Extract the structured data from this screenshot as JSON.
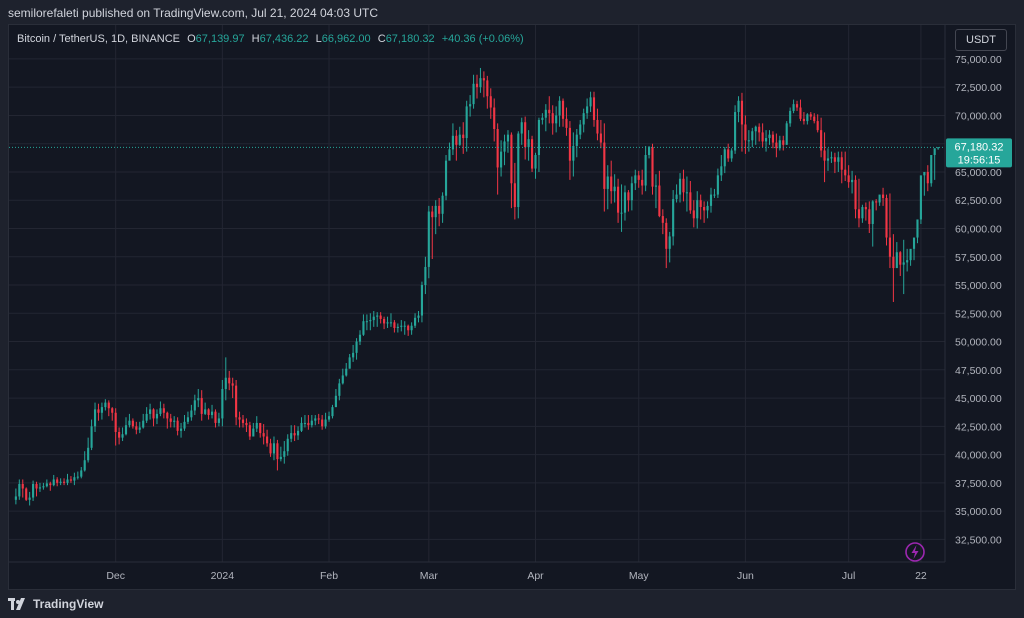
{
  "publisher_line": "semilorefaleti published on TradingView.com, Jul 21, 2024 04:03 UTC",
  "legend": {
    "symbol": "Bitcoin / TetherUS, 1D, BINANCE",
    "open_label": "O",
    "open": "67,139.97",
    "high_label": "H",
    "high": "67,436.22",
    "low_label": "L",
    "low": "66,962.00",
    "close_label": "C",
    "close": "67,180.32",
    "change": "+40.36 (+0.06%)"
  },
  "currency_button": "USDT",
  "last_price_label": "67,180.32",
  "countdown_label": "19:56:15",
  "footer_brand": "TradingView",
  "colors": {
    "up": "#26a69a",
    "down": "#f23645",
    "background": "#131722",
    "grid": "#232632",
    "text": "#b2b5be",
    "marker": "#9c27b0"
  },
  "icons": {
    "brand": "tradingview-logo-icon",
    "event": "lightning-icon"
  },
  "chart_data": {
    "type": "candlestick",
    "title": "Bitcoin / TetherUS, 1D, BINANCE",
    "y_tick_labels": [
      "75,000.00",
      "72,500.00",
      "70,000.00",
      "67,500.00",
      "65,000.00",
      "62,500.00",
      "60,000.00",
      "57,500.00",
      "55,000.00",
      "52,500.00",
      "50,000.00",
      "47,500.00",
      "45,000.00",
      "42,500.00",
      "40,000.00",
      "37,500.00",
      "35,000.00",
      "32,500.00"
    ],
    "y_ticks": [
      75000,
      72500,
      70000,
      67500,
      65000,
      62500,
      60000,
      57500,
      55000,
      52500,
      50000,
      47500,
      45000,
      42500,
      40000,
      37500,
      35000,
      32500
    ],
    "x_tick_labels": [
      "Dec",
      "2024",
      "Feb",
      "Mar",
      "Apr",
      "May",
      "Jun",
      "Jul",
      "22"
    ],
    "x_tick_index": [
      29,
      60,
      91,
      120,
      151,
      181,
      212,
      242,
      263
    ],
    "ylim": [
      30500,
      78000
    ],
    "x_range": [
      -2,
      270
    ],
    "closes": [
      36300,
      37400,
      37000,
      36000,
      36200,
      37400,
      37000,
      37100,
      37200,
      37450,
      37300,
      37800,
      37500,
      37600,
      37500,
      37800,
      37700,
      38000,
      38050,
      38600,
      39500,
      40600,
      42500,
      44000,
      43700,
      44200,
      44600,
      44100,
      43700,
      42000,
      41500,
      41800,
      42600,
      43000,
      42500,
      42200,
      42400,
      43000,
      43600,
      44000,
      43200,
      43600,
      44100,
      43700,
      43200,
      42900,
      43000,
      42100,
      42300,
      42900,
      43300,
      43900,
      44800,
      45000,
      43600,
      44000,
      43500,
      43800,
      42800,
      43200,
      45800,
      46800,
      46300,
      46100,
      43300,
      43100,
      42800,
      42600,
      41600,
      42300,
      42800,
      41900,
      41600,
      41000,
      40100,
      41000,
      39600,
      39800,
      40300,
      41400,
      41900,
      41700,
      42100,
      42800,
      42800,
      42600,
      43000,
      43200,
      43100,
      42500,
      43100,
      43400,
      44200,
      45200,
      46300,
      47000,
      47600,
      48600,
      49000,
      50000,
      50600,
      51800,
      51800,
      51900,
      52200,
      52300,
      52000,
      51600,
      51700,
      51700,
      51200,
      51300,
      51400,
      51400,
      51000,
      51400,
      52100,
      52300,
      55000,
      56600,
      61500,
      61000,
      62000,
      61300,
      62900,
      66000,
      67000,
      68200,
      67400,
      68300,
      68000,
      70800,
      71000,
      72800,
      72500,
      73300,
      73100,
      71700,
      70700,
      68800,
      65400,
      66800,
      67700,
      68300,
      64000,
      61900,
      68400,
      69400,
      67200,
      67900,
      65300,
      66500,
      69600,
      69800,
      70500,
      70200,
      69300,
      70000,
      71300,
      69700,
      68900,
      66000,
      67300,
      68300,
      69200,
      70200,
      70800,
      71600,
      69600,
      68400,
      67600,
      63500,
      64600,
      63300,
      63700,
      61400,
      61400,
      63200,
      62500,
      64000,
      64700,
      64300,
      63800,
      66500,
      67200,
      63700,
      63800,
      61100,
      60500,
      58200,
      59300,
      62600,
      63000,
      64400,
      63200,
      63200,
      61600,
      60900,
      62500,
      61900,
      61600,
      62000,
      63000,
      63000,
      64700,
      65500,
      67000,
      66200,
      66900,
      70300,
      71300,
      69200,
      67800,
      67800,
      68600,
      69000,
      68500,
      67700,
      68000,
      68300,
      67600,
      67100,
      67800,
      67400,
      69300,
      70400,
      71000,
      70700,
      69700,
      69500,
      70100,
      69900,
      69500,
      68700,
      66900,
      66000,
      66200,
      66300,
      65900,
      66300,
      65200,
      64700,
      64100,
      64300,
      61700,
      60900,
      61900,
      61700,
      60400,
      62400,
      62300,
      63000,
      62700,
      59200,
      57500,
      56500,
      57900,
      56800,
      57000,
      57200,
      58200,
      59200,
      60800,
      64700,
      65000,
      64000,
      66500,
      67100,
      67180
    ],
    "highs": [
      37000,
      37800,
      37800,
      37100,
      36700,
      37700,
      37600,
      37500,
      37500,
      37800,
      37600,
      38200,
      38000,
      37900,
      37900,
      38300,
      38100,
      38400,
      38500,
      38900,
      40300,
      41500,
      43100,
      44600,
      44500,
      44600,
      44900,
      44800,
      44200,
      44100,
      42400,
      42400,
      43300,
      43600,
      43200,
      42900,
      42900,
      43600,
      44200,
      44500,
      44100,
      44000,
      44700,
      44500,
      43800,
      43600,
      43400,
      43300,
      42800,
      43500,
      43800,
      44400,
      45300,
      45800,
      45700,
      44600,
      44100,
      44400,
      44000,
      43700,
      46600,
      48600,
      47400,
      46800,
      46600,
      43800,
      43500,
      43200,
      42900,
      42800,
      43400,
      42600,
      42700,
      42200,
      41400,
      41600,
      41300,
      40700,
      41200,
      41800,
      42600,
      42600,
      42500,
      43300,
      43500,
      43500,
      43500,
      43500,
      43600,
      43500,
      43700,
      43800,
      44400,
      45800,
      46700,
      47600,
      48100,
      48900,
      49700,
      50300,
      51000,
      52400,
      52400,
      52500,
      52700,
      52600,
      52600,
      52200,
      52200,
      52500,
      51900,
      51600,
      51900,
      51800,
      51500,
      51700,
      52500,
      52700,
      55300,
      57500,
      62000,
      62000,
      62500,
      62700,
      63200,
      66500,
      67600,
      69300,
      68700,
      69000,
      69400,
      71300,
      71800,
      73600,
      73600,
      74200,
      73900,
      73500,
      72400,
      71500,
      69300,
      67800,
      68300,
      68700,
      68500,
      65800,
      68600,
      69800,
      69900,
      68700,
      68200,
      66700,
      69800,
      70200,
      71000,
      71700,
      70900,
      70800,
      71700,
      71500,
      70700,
      69500,
      68500,
      68800,
      69600,
      70600,
      71500,
      72100,
      72100,
      70600,
      69600,
      69300,
      65600,
      66000,
      64800,
      64400,
      63900,
      63800,
      63400,
      64600,
      65200,
      65100,
      65200,
      67300,
      67300,
      67500,
      64800,
      65100,
      61700,
      60900,
      59700,
      63400,
      63900,
      64900,
      65200,
      64600,
      64200,
      62500,
      63300,
      63000,
      62400,
      62400,
      63600,
      63500,
      65300,
      66500,
      67200,
      67500,
      67100,
      70900,
      71700,
      72000,
      70000,
      68700,
      68900,
      69100,
      69300,
      69300,
      68700,
      68700,
      68600,
      68400,
      68200,
      68200,
      69500,
      70700,
      71400,
      71300,
      71400,
      70300,
      70200,
      70300,
      70200,
      70100,
      69800,
      68500,
      67100,
      66800,
      66700,
      66800,
      66800,
      66800,
      65600,
      65100,
      64700,
      64400,
      62100,
      62300,
      62400,
      62500,
      62600,
      62700,
      63600,
      63000,
      63100,
      59500,
      58800,
      58000,
      59000,
      58200,
      57800,
      58600,
      59600,
      61400,
      65000,
      65600,
      65000,
      66600,
      67200,
      67436
    ],
    "lows": [
      35600,
      36000,
      36200,
      35900,
      35500,
      35900,
      36300,
      36700,
      36900,
      37100,
      36800,
      37200,
      37200,
      37300,
      37300,
      37300,
      37500,
      37300,
      37800,
      37900,
      38500,
      39300,
      40400,
      42000,
      43000,
      43100,
      43900,
      43400,
      43000,
      40800,
      40900,
      41200,
      41700,
      42400,
      42300,
      41800,
      41900,
      42300,
      42800,
      43100,
      42500,
      42700,
      43400,
      43200,
      42300,
      42400,
      42400,
      41700,
      41500,
      42100,
      42700,
      43000,
      43500,
      44200,
      43000,
      43500,
      43100,
      43200,
      42400,
      42500,
      42500,
      44800,
      45700,
      45000,
      42600,
      42400,
      42400,
      42000,
      41300,
      41600,
      42000,
      41500,
      40900,
      40700,
      39800,
      39500,
      38600,
      39400,
      39200,
      39900,
      41100,
      41200,
      41300,
      42000,
      42400,
      42200,
      42400,
      42600,
      42700,
      42200,
      42300,
      42900,
      43200,
      44200,
      44800,
      46200,
      46900,
      47600,
      48200,
      48400,
      49700,
      50500,
      51000,
      51000,
      51300,
      51300,
      51600,
      51100,
      51200,
      51300,
      50800,
      50800,
      50900,
      50600,
      50500,
      50600,
      51200,
      51700,
      51700,
      54200,
      55600,
      57300,
      59500,
      60200,
      60500,
      62500,
      66100,
      66500,
      66000,
      67300,
      66600,
      66800,
      69900,
      70600,
      71500,
      72000,
      71600,
      70600,
      69700,
      67700,
      63000,
      64600,
      65600,
      66700,
      61800,
      60800,
      60900,
      67400,
      66100,
      66000,
      65000,
      64400,
      65000,
      69200,
      68600,
      69300,
      68300,
      68500,
      69000,
      69000,
      68200,
      64300,
      64600,
      66300,
      67900,
      68500,
      69700,
      70300,
      69000,
      67800,
      67100,
      61500,
      61700,
      62200,
      62300,
      60500,
      59700,
      60700,
      61500,
      61600,
      63400,
      63600,
      63000,
      63300,
      66200,
      63000,
      61800,
      61000,
      59500,
      56500,
      57000,
      58500,
      62300,
      62300,
      62400,
      61500,
      61300,
      60100,
      60000,
      60800,
      60500,
      60900,
      61400,
      62700,
      62700,
      64200,
      64900,
      65900,
      65900,
      66600,
      69400,
      66800,
      66600,
      66800,
      67200,
      67400,
      67700,
      67200,
      66800,
      67400,
      67100,
      66300,
      66900,
      66900,
      67400,
      69000,
      70200,
      70400,
      69500,
      69200,
      69200,
      69600,
      69300,
      68500,
      66300,
      64100,
      65100,
      65800,
      64900,
      65000,
      64000,
      64200,
      63600,
      63100,
      60900,
      60100,
      60500,
      60700,
      59600,
      58400,
      61600,
      62000,
      62000,
      58500,
      56500,
      53500,
      56500,
      55800,
      54200,
      56200,
      56700,
      57200,
      58700,
      60400,
      62900,
      63300,
      63700,
      64300,
      66962
    ],
    "last_close": 67180.32
  }
}
